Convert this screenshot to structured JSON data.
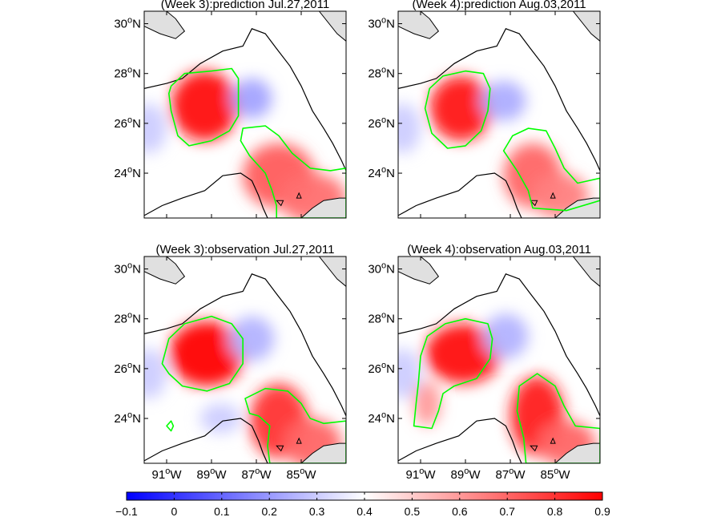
{
  "chart_data": {
    "type": "heatmap",
    "colormap": [
      "#0000ff",
      "#ffffff",
      "#ff0000"
    ],
    "contour_color": "#00ff00",
    "land_color": "#e0e0e0",
    "coast_color": "#000000",
    "xlim": [
      -92,
      -83
    ],
    "ylim": [
      22.2,
      30.5
    ],
    "xticks": [
      "91",
      "89",
      "87",
      "85"
    ],
    "xtick_suffix": "W",
    "yticks": [
      "30",
      "28",
      "26",
      "24"
    ],
    "ytick_suffix": "N",
    "degree_symbol": "o",
    "colorbar": {
      "range": [
        -0.1,
        0.9
      ],
      "ticks": [
        "−0.1",
        "0",
        "0.1",
        "0.2",
        "0.3",
        "0.4",
        "0.5",
        "0.6",
        "0.7",
        "0.8",
        "0.9"
      ]
    },
    "panels": [
      {
        "title": "(Week 3):prediction Jul.27,2011",
        "features": [
          {
            "kind": "high",
            "lon": -89.3,
            "lat": 26.7,
            "value": 0.88,
            "rx": 1.5,
            "ry": 1.4
          },
          {
            "kind": "high",
            "lon": -86.0,
            "lat": 23.9,
            "value": 0.72,
            "rx": 1.6,
            "ry": 1.3
          },
          {
            "kind": "high",
            "lon": -84.5,
            "lat": 23.0,
            "value": 0.68,
            "rx": 1.5,
            "ry": 1.0
          },
          {
            "kind": "low",
            "lon": -87.2,
            "lat": 27.0,
            "value": 0.22,
            "rx": 0.9,
            "ry": 0.8
          },
          {
            "kind": "low",
            "lon": -91.8,
            "lat": 25.8,
            "value": 0.3,
            "rx": 0.8,
            "ry": 1.0
          }
        ],
        "contours": [
          [
            [
              -90.8,
              27.5
            ],
            [
              -90.2,
              28.0
            ],
            [
              -89.0,
              28.1
            ],
            [
              -88.1,
              28.2
            ],
            [
              -87.8,
              27.8
            ],
            [
              -87.8,
              26.3
            ],
            [
              -88.2,
              25.7
            ],
            [
              -89.0,
              25.3
            ],
            [
              -90.0,
              25.1
            ],
            [
              -90.5,
              25.5
            ],
            [
              -90.8,
              26.5
            ],
            [
              -90.9,
              27.2
            ]
          ],
          [
            [
              -87.6,
              25.8
            ],
            [
              -86.6,
              25.9
            ],
            [
              -86.0,
              25.5
            ],
            [
              -85.4,
              24.8
            ],
            [
              -84.6,
              24.2
            ],
            [
              -83.7,
              24.1
            ],
            [
              -83.0,
              24.2
            ],
            [
              -83.0,
              22.2
            ],
            [
              -86.1,
              22.2
            ],
            [
              -86.1,
              22.7
            ],
            [
              -86.3,
              23.3
            ],
            [
              -86.6,
              24.0
            ],
            [
              -87.3,
              24.7
            ],
            [
              -87.7,
              25.3
            ]
          ]
        ]
      },
      {
        "title": "(Week 4):prediction Aug.03,2011",
        "features": [
          {
            "kind": "high",
            "lon": -89.2,
            "lat": 26.6,
            "value": 0.86,
            "rx": 1.4,
            "ry": 1.3
          },
          {
            "kind": "high",
            "lon": -86.0,
            "lat": 23.9,
            "value": 0.7,
            "rx": 1.3,
            "ry": 1.3
          },
          {
            "kind": "high",
            "lon": -84.8,
            "lat": 23.1,
            "value": 0.65,
            "rx": 1.3,
            "ry": 0.9
          },
          {
            "kind": "low",
            "lon": -87.3,
            "lat": 26.9,
            "value": 0.24,
            "rx": 1.0,
            "ry": 0.8
          },
          {
            "kind": "low",
            "lon": -91.8,
            "lat": 25.8,
            "value": 0.3,
            "rx": 0.8,
            "ry": 1.0
          }
        ],
        "contours": [
          [
            [
              -90.6,
              27.4
            ],
            [
              -90.0,
              27.9
            ],
            [
              -89.0,
              28.1
            ],
            [
              -88.2,
              28.0
            ],
            [
              -87.9,
              27.4
            ],
            [
              -88.0,
              26.5
            ],
            [
              -88.3,
              25.7
            ],
            [
              -89.0,
              25.1
            ],
            [
              -89.8,
              25.0
            ],
            [
              -90.5,
              25.6
            ],
            [
              -90.8,
              26.6
            ]
          ],
          [
            [
              -87.3,
              24.9
            ],
            [
              -86.9,
              25.5
            ],
            [
              -86.2,
              25.8
            ],
            [
              -85.4,
              25.7
            ],
            [
              -85.0,
              25.0
            ],
            [
              -84.6,
              24.2
            ],
            [
              -84.0,
              23.6
            ],
            [
              -83.0,
              23.8
            ],
            [
              -83.0,
              22.9
            ],
            [
              -84.5,
              22.5
            ],
            [
              -86.0,
              22.6
            ],
            [
              -86.2,
              23.3
            ],
            [
              -86.7,
              24.1
            ]
          ]
        ]
      },
      {
        "title": "(Week 3):observation Jul.27,2011",
        "features": [
          {
            "kind": "high",
            "lon": -89.2,
            "lat": 26.6,
            "value": 0.9,
            "rx": 1.7,
            "ry": 1.3
          },
          {
            "kind": "high",
            "lon": -86.0,
            "lat": 23.9,
            "value": 0.8,
            "rx": 1.3,
            "ry": 1.5
          },
          {
            "kind": "high",
            "lon": -84.5,
            "lat": 23.0,
            "value": 0.7,
            "rx": 1.3,
            "ry": 1.0
          },
          {
            "kind": "low",
            "lon": -87.2,
            "lat": 27.2,
            "value": 0.25,
            "rx": 1.0,
            "ry": 0.9
          },
          {
            "kind": "low",
            "lon": -88.6,
            "lat": 24.0,
            "value": 0.3,
            "rx": 0.9,
            "ry": 0.6
          },
          {
            "kind": "low",
            "lon": -91.8,
            "lat": 25.8,
            "value": 0.3,
            "rx": 0.8,
            "ry": 1.0
          }
        ],
        "contours": [
          [
            [
              -91.2,
              26.2
            ],
            [
              -90.9,
              27.2
            ],
            [
              -90.2,
              27.8
            ],
            [
              -89.0,
              28.1
            ],
            [
              -88.1,
              27.8
            ],
            [
              -87.6,
              27.2
            ],
            [
              -87.6,
              26.2
            ],
            [
              -88.2,
              25.4
            ],
            [
              -89.2,
              25.1
            ],
            [
              -90.3,
              25.3
            ],
            [
              -90.9,
              25.8
            ]
          ],
          [
            [
              -87.3,
              24.2
            ],
            [
              -87.5,
              24.8
            ],
            [
              -86.6,
              25.2
            ],
            [
              -85.6,
              25.1
            ],
            [
              -85.0,
              24.6
            ],
            [
              -84.6,
              24.0
            ],
            [
              -84.0,
              23.8
            ],
            [
              -83.0,
              23.9
            ],
            [
              -83.0,
              22.2
            ],
            [
              -86.4,
              22.2
            ],
            [
              -86.5,
              22.9
            ],
            [
              -86.4,
              23.7
            ],
            [
              -86.9,
              24.1
            ]
          ],
          [
            [
              -91.0,
              23.7
            ],
            [
              -90.8,
              23.9
            ],
            [
              -90.7,
              23.7
            ],
            [
              -90.8,
              23.5
            ]
          ]
        ]
      },
      {
        "title": "(Week 4):observation Aug.03,2011",
        "features": [
          {
            "kind": "high",
            "lon": -89.1,
            "lat": 26.6,
            "value": 0.88,
            "rx": 1.7,
            "ry": 1.2
          },
          {
            "kind": "high",
            "lon": -90.7,
            "lat": 24.6,
            "value": 0.6,
            "rx": 0.6,
            "ry": 0.9
          },
          {
            "kind": "high",
            "lon": -85.8,
            "lat": 24.1,
            "value": 0.85,
            "rx": 1.2,
            "ry": 1.6
          },
          {
            "kind": "high",
            "lon": -84.5,
            "lat": 23.0,
            "value": 0.7,
            "rx": 1.3,
            "ry": 0.9
          },
          {
            "kind": "low",
            "lon": -87.2,
            "lat": 27.3,
            "value": 0.25,
            "rx": 1.0,
            "ry": 0.9
          },
          {
            "kind": "low",
            "lon": -91.8,
            "lat": 25.8,
            "value": 0.3,
            "rx": 0.8,
            "ry": 1.0
          }
        ],
        "contours": [
          [
            [
              -91.0,
              26.5
            ],
            [
              -90.7,
              27.3
            ],
            [
              -89.9,
              27.8
            ],
            [
              -89.0,
              28.0
            ],
            [
              -88.0,
              27.8
            ],
            [
              -87.8,
              27.2
            ],
            [
              -87.9,
              26.4
            ],
            [
              -88.5,
              25.6
            ],
            [
              -89.5,
              25.3
            ],
            [
              -90.0,
              25.0
            ],
            [
              -90.2,
              24.3
            ],
            [
              -90.5,
              23.6
            ],
            [
              -91.3,
              23.7
            ],
            [
              -91.2,
              24.6
            ],
            [
              -91.1,
              25.4
            ]
          ],
          [
            [
              -86.6,
              25.3
            ],
            [
              -85.8,
              25.8
            ],
            [
              -85.0,
              25.3
            ],
            [
              -84.6,
              24.5
            ],
            [
              -84.1,
              23.7
            ],
            [
              -83.0,
              23.6
            ],
            [
              -83.0,
              22.2
            ],
            [
              -86.3,
              22.2
            ],
            [
              -86.4,
              23.2
            ],
            [
              -86.7,
              24.3
            ]
          ]
        ]
      }
    ],
    "coastline": [
      [
        -92.0,
        27.4
      ],
      [
        -91.0,
        27.6
      ],
      [
        -90.3,
        27.8
      ],
      [
        -89.5,
        28.4
      ],
      [
        -88.5,
        28.9
      ],
      [
        -87.6,
        29.1
      ],
      [
        -87.2,
        29.8
      ],
      [
        -86.6,
        29.6
      ],
      [
        -86.1,
        29.0
      ],
      [
        -85.5,
        28.3
      ],
      [
        -85.0,
        27.5
      ],
      [
        -84.5,
        26.5
      ],
      [
        -84.0,
        25.8
      ],
      [
        -83.6,
        25.2
      ],
      [
        -83.2,
        24.5
      ],
      [
        -83.0,
        24.1
      ]
    ],
    "yucatan_shelf": [
      [
        -92.0,
        22.3
      ],
      [
        -91.2,
        22.7
      ],
      [
        -90.3,
        23.0
      ],
      [
        -89.3,
        23.3
      ],
      [
        -88.5,
        23.9
      ],
      [
        -87.7,
        24.0
      ],
      [
        -87.2,
        23.7
      ],
      [
        -86.9,
        23.1
      ],
      [
        -86.7,
        22.6
      ],
      [
        -86.5,
        22.2
      ]
    ],
    "land": [
      [
        [
          -92.0,
          30.5
        ],
        [
          -92.0,
          29.9
        ],
        [
          -91.3,
          29.6
        ],
        [
          -90.6,
          29.4
        ],
        [
          -90.2,
          29.7
        ],
        [
          -90.6,
          30.2
        ],
        [
          -91.0,
          30.5
        ]
      ],
      [
        [
          -84.2,
          30.5
        ],
        [
          -83.4,
          29.6
        ],
        [
          -83.0,
          29.3
        ],
        [
          -83.0,
          30.5
        ]
      ],
      [
        [
          -85.0,
          22.2
        ],
        [
          -84.5,
          22.6
        ],
        [
          -84.0,
          22.9
        ],
        [
          -83.3,
          23.0
        ],
        [
          -83.0,
          23.0
        ],
        [
          -83.0,
          22.2
        ]
      ]
    ],
    "islands": [
      [
        [
          -86.1,
          22.9
        ],
        [
          -85.9,
          22.7
        ],
        [
          -85.8,
          22.9
        ]
      ],
      [
        [
          -85.2,
          23.0
        ],
        [
          -85.1,
          23.2
        ],
        [
          -85.0,
          23.0
        ]
      ]
    ]
  }
}
